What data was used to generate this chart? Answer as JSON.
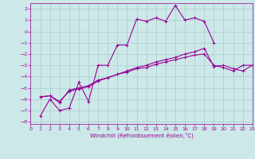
{
  "xlabel": "Windchill (Refroidissement éolien,°C)",
  "background_color": "#cce8e8",
  "grid_color": "#aacccc",
  "line_color": "#990099",
  "xlim": [
    0,
    23
  ],
  "ylim": [
    -8.2,
    2.5
  ],
  "xticks": [
    0,
    1,
    2,
    3,
    4,
    5,
    6,
    7,
    8,
    9,
    10,
    11,
    12,
    13,
    14,
    15,
    16,
    17,
    18,
    19,
    20,
    21,
    22,
    23
  ],
  "yticks": [
    -8,
    -7,
    -6,
    -5,
    -4,
    -3,
    -2,
    -1,
    0,
    1,
    2
  ],
  "series": [
    [
      null,
      -7.5,
      -6.0,
      -7.0,
      -6.8,
      -4.5,
      -6.2,
      -3.0,
      -3.0,
      -1.2,
      -1.2,
      1.1,
      0.9,
      1.2,
      0.9,
      2.3,
      1.0,
      1.2,
      0.9,
      -1.0,
      null,
      null,
      null,
      null
    ],
    [
      null,
      -5.8,
      -5.7,
      -6.3,
      -5.2,
      -5.0,
      -4.8,
      -4.3,
      -4.1,
      -3.8,
      -3.6,
      -3.3,
      -3.2,
      -2.9,
      -2.7,
      -2.5,
      -2.3,
      -2.1,
      -2.0,
      -3.0,
      -3.2,
      -3.5,
      -3.0,
      -3.0
    ],
    [
      null,
      -5.8,
      -5.7,
      -6.2,
      -5.3,
      -5.1,
      -4.9,
      -4.4,
      -4.1,
      -3.8,
      -3.5,
      -3.2,
      -3.0,
      -2.7,
      -2.5,
      -2.3,
      -2.0,
      -1.8,
      -1.5,
      -3.1,
      -3.0,
      -3.3,
      -3.5,
      -3.0
    ]
  ]
}
